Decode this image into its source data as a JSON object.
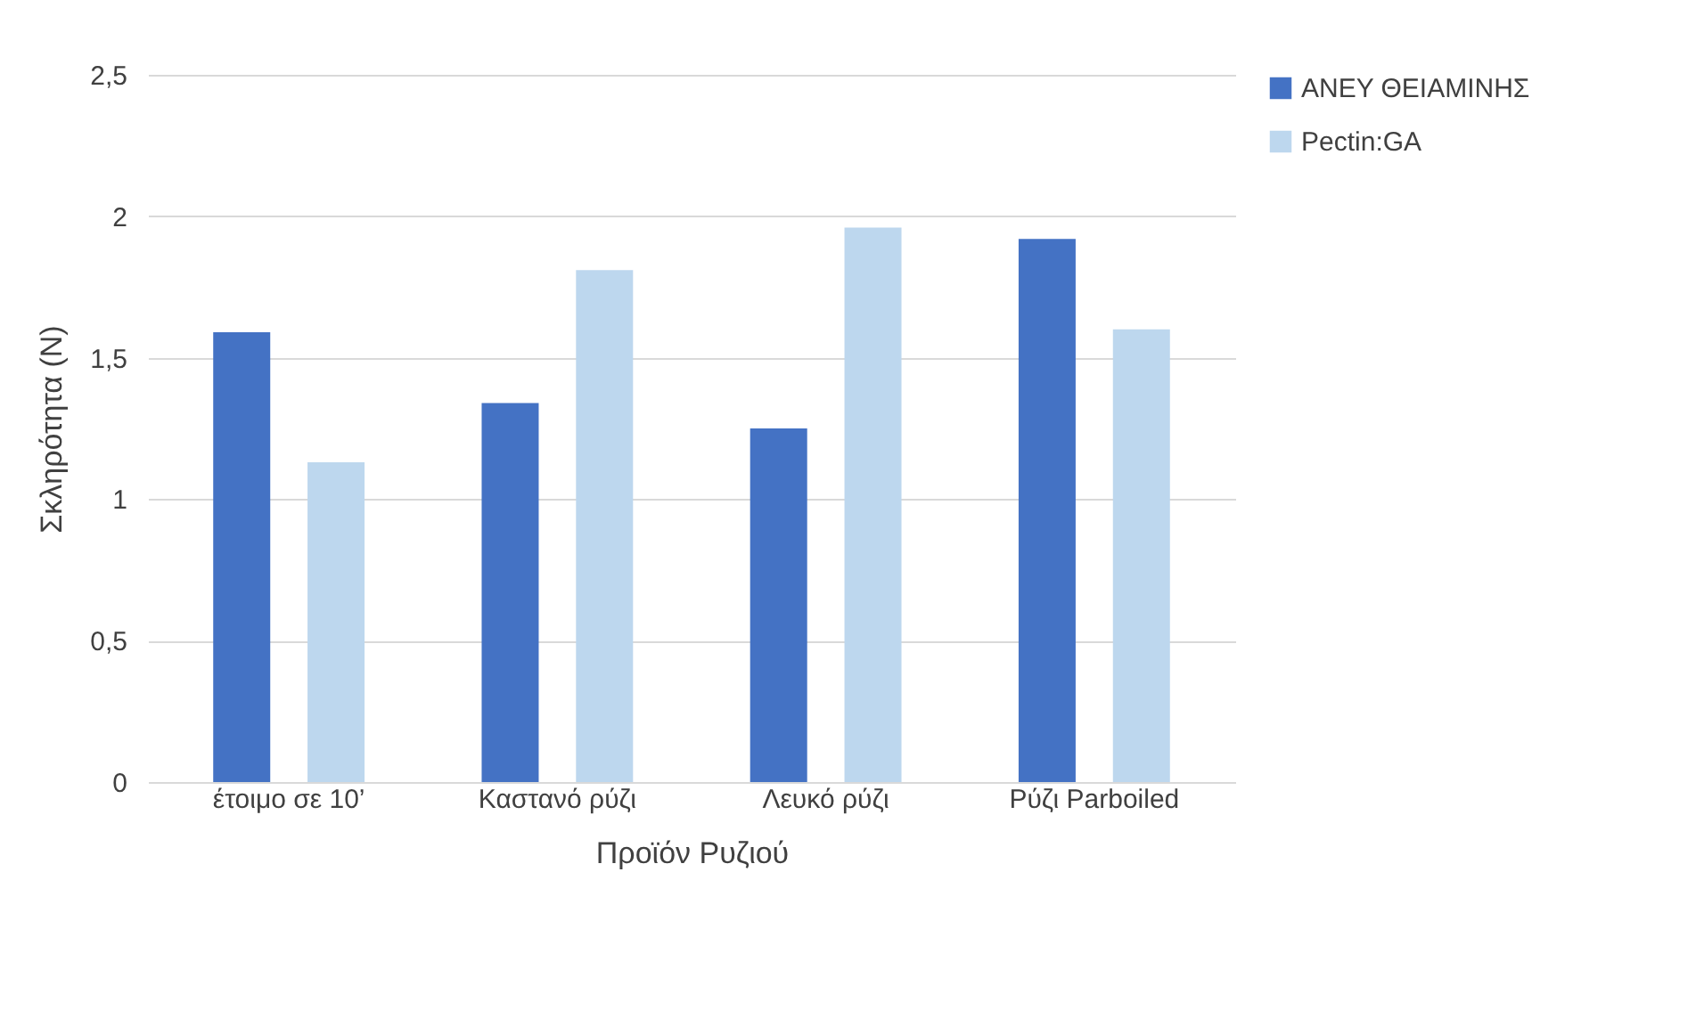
{
  "chart_data": {
    "type": "bar",
    "xlabel": "Προϊόν Ρυζιού",
    "ylabel": "Σκληρότητα (N)",
    "categories": [
      "έτοιμο σε 10’",
      "Καστανό ρύζι",
      "Λευκό ρύζι",
      "Ρύζι Parboiled"
    ],
    "series": [
      {
        "name": "ΑΝΕΥ ΘΕΙΑΜΙΝΗΣ",
        "color": "#4472c4",
        "values": [
          1.59,
          1.34,
          1.25,
          1.92
        ]
      },
      {
        "name": "Pectin:GA",
        "color": "#bdd7ee",
        "values": [
          1.13,
          1.81,
          1.96,
          1.6
        ]
      }
    ],
    "ylim": [
      0,
      2.5
    ],
    "yticks": [
      {
        "value": 0,
        "label": "0"
      },
      {
        "value": 0.5,
        "label": "0,5"
      },
      {
        "value": 1,
        "label": "1"
      },
      {
        "value": 1.5,
        "label": "1,5"
      },
      {
        "value": 2,
        "label": "2"
      },
      {
        "value": 2.5,
        "label": "2,5"
      }
    ],
    "grid": "y",
    "legend": "right"
  }
}
